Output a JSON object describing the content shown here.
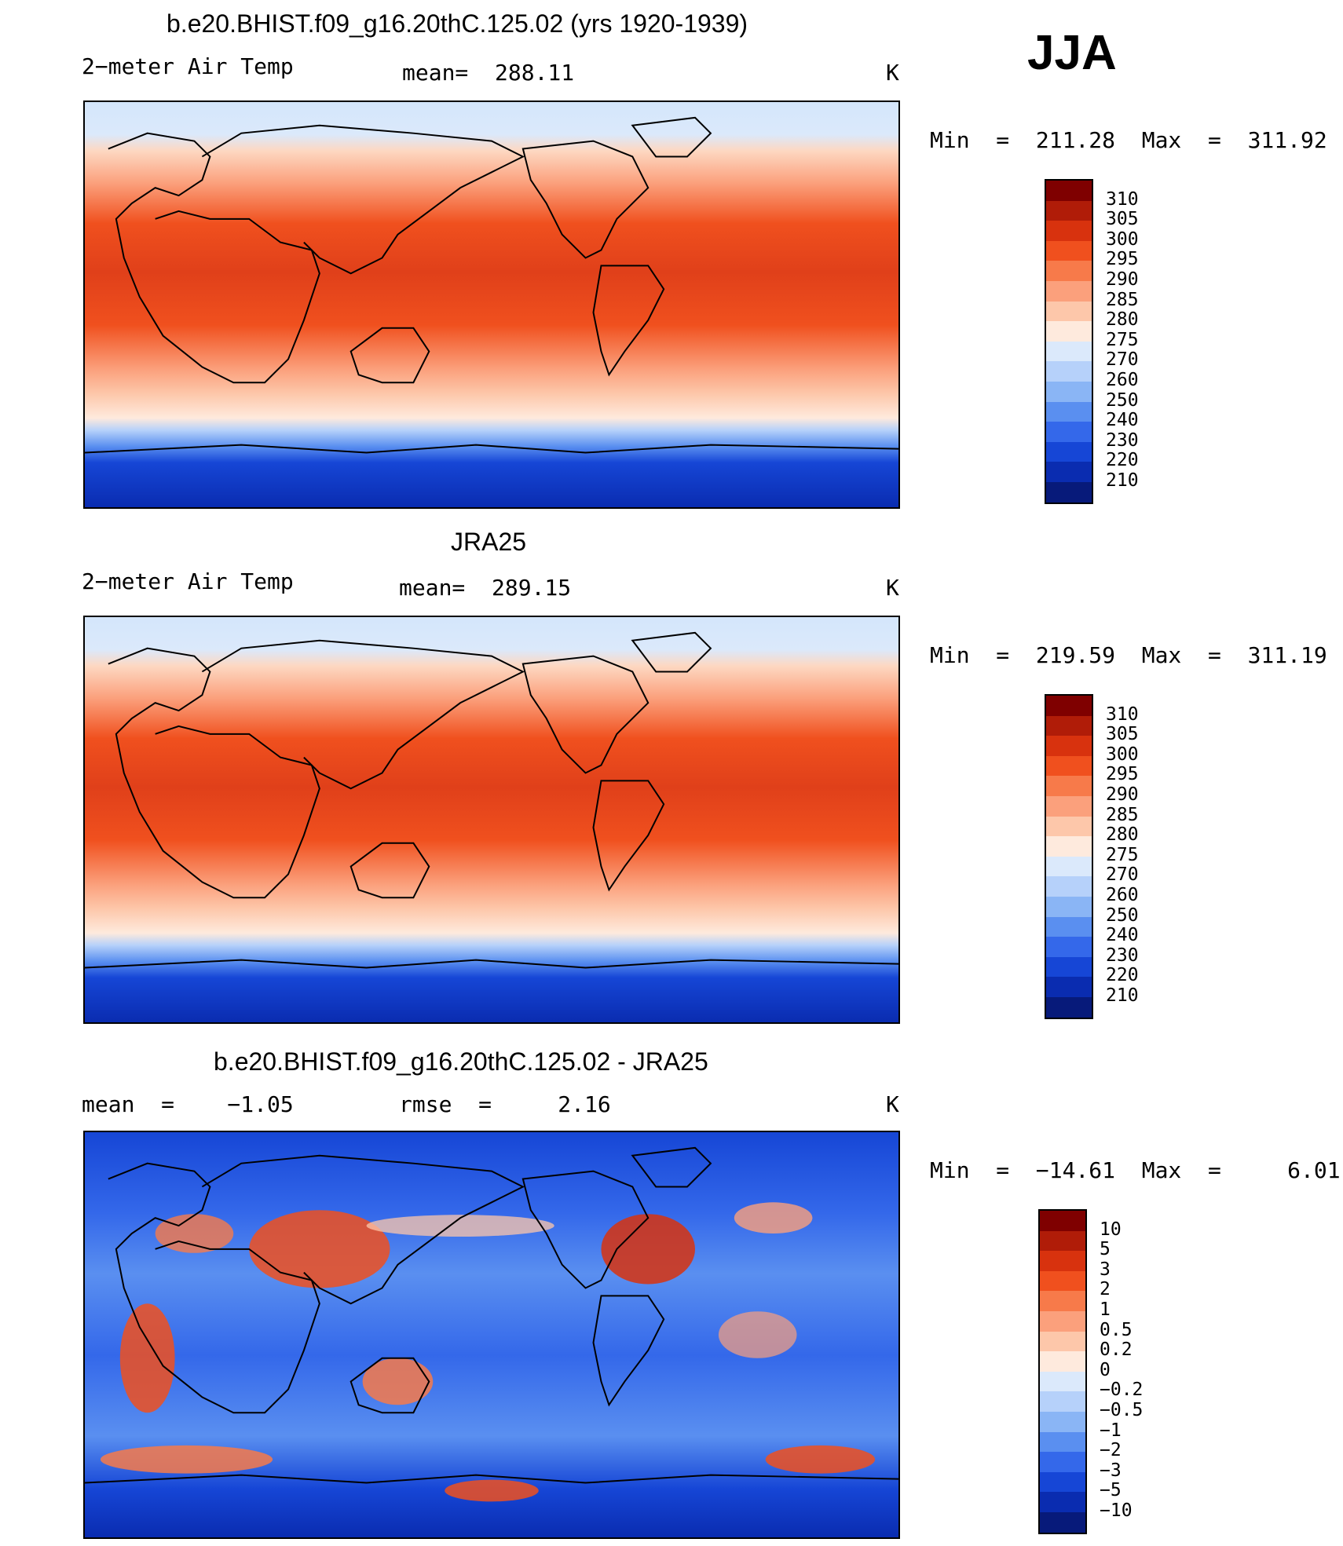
{
  "season": "JJA",
  "panels": [
    {
      "title": "b.e20.BHIST.f09_g16.20thC.125.02 (yrs 1920-1939)",
      "left_label": "2−meter Air Temp",
      "center_label": "mean=  288.11",
      "units": "K",
      "minmax": "Min  =  211.28  Max  =  311.92"
    },
    {
      "title": "JRA25",
      "left_label": "2−meter Air Temp",
      "center_label": "mean=  289.15",
      "units": "K",
      "minmax": "Min  =  219.59  Max  =  311.19"
    },
    {
      "title": "b.e20.BHIST.f09_g16.20thC.125.02 - JRA25",
      "left_label": "mean  =    −1.05",
      "center_label": "rmse  =     2.16",
      "units": "K",
      "minmax": "Min  =  −14.61  Max  =     6.01"
    }
  ],
  "colorbars": {
    "absolute": {
      "labels": [
        "310",
        "305",
        "300",
        "295",
        "290",
        "285",
        "280",
        "275",
        "270",
        "260",
        "250",
        "240",
        "230",
        "220",
        "210"
      ],
      "colors": [
        "#7f0000",
        "#b01c08",
        "#d8320e",
        "#f0501e",
        "#f77a4a",
        "#fba07c",
        "#fdc7aa",
        "#feeadd",
        "#dbe9fb",
        "#b6d1fa",
        "#8ab5f5",
        "#5a8ff0",
        "#3468ea",
        "#1646d6",
        "#0a2cb0",
        "#071a7a"
      ]
    },
    "difference": {
      "labels": [
        "10",
        "5",
        "3",
        "2",
        "1",
        "0.5",
        "0.2",
        "0",
        "−0.2",
        "−0.5",
        "−1",
        "−2",
        "−3",
        "−5",
        "−10"
      ],
      "colors": [
        "#7f0000",
        "#b01c08",
        "#d8320e",
        "#f0501e",
        "#f77a4a",
        "#fba07c",
        "#fdc7aa",
        "#feeadd",
        "#dbe9fb",
        "#b6d1fa",
        "#8ab5f5",
        "#5a8ff0",
        "#3468ea",
        "#1646d6",
        "#0a2cb0",
        "#071a7a"
      ]
    }
  }
}
